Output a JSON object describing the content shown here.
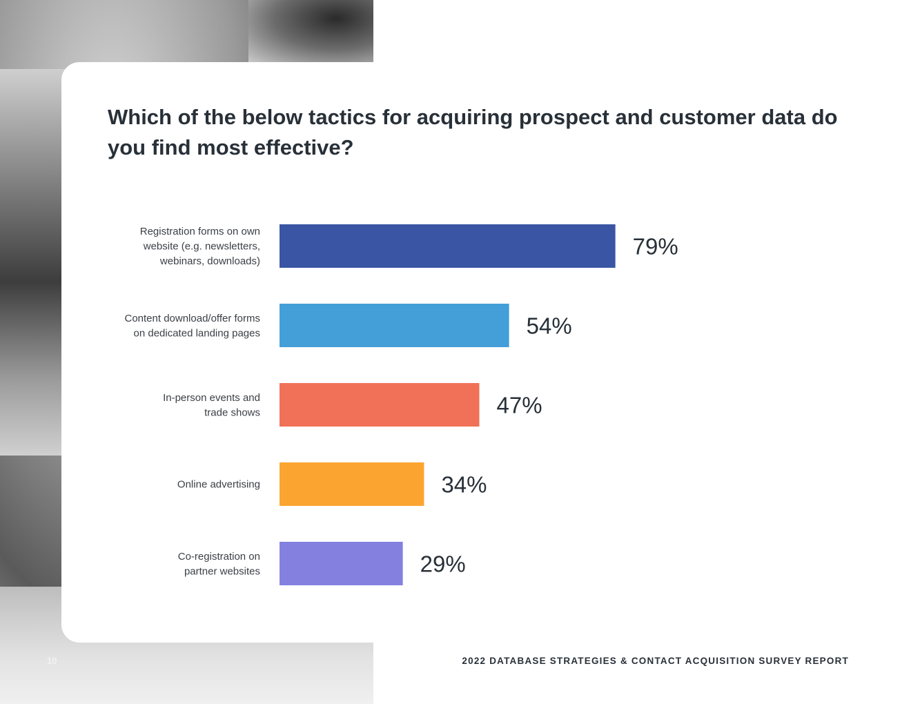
{
  "page": {
    "title": "Which of the below tactics for acquiring prospect and customer data do you find most effective?",
    "footer": "2022 DATABASE STRATEGIES & CONTACT ACQUISITION SURVEY REPORT",
    "page_number": "10"
  },
  "chart_data": {
    "type": "bar",
    "orientation": "horizontal",
    "title": "Which of the below tactics for acquiring prospect and customer data do you find most effective?",
    "categories": [
      [
        "Registration forms on own",
        "website (e.g. newsletters,",
        "webinars, downloads)"
      ],
      [
        "Content download/offer forms",
        "on dedicated landing pages"
      ],
      [
        "In-person events and",
        "trade shows"
      ],
      [
        "Online advertising"
      ],
      [
        "Co-registration on",
        "partner websites"
      ]
    ],
    "values": [
      79,
      54,
      47,
      34,
      29
    ],
    "value_labels": [
      "79%",
      "54%",
      "47%",
      "34%",
      "29%"
    ],
    "colors": [
      "#3a55a4",
      "#449fd8",
      "#f07157",
      "#fca430",
      "#8380e0"
    ],
    "xlim": [
      0,
      100
    ],
    "grid": false,
    "legend": "none",
    "axes_visible": false
  }
}
